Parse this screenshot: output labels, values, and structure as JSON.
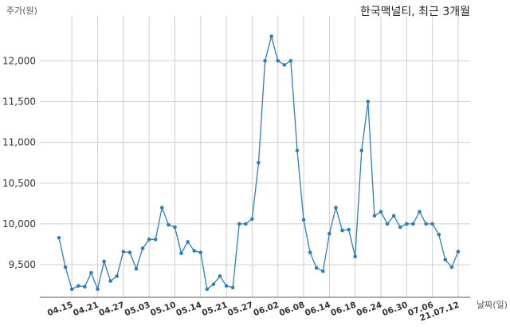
{
  "chart_data": {
    "type": "line",
    "title": "한국맥널티, 최근 3개월",
    "ylabel": "주가(원)",
    "xlabel": "날짜(일)",
    "ylim": [
      9100,
      12550
    ],
    "grid": true,
    "line_color": "#2e7fb5",
    "grid_color": "#cfcfcf",
    "x_tick_labels": [
      "04.15",
      "04.21",
      "04.27",
      "05.03",
      "05.10",
      "05.14",
      "05.21",
      "05.27",
      "06.02",
      "06.08",
      "06.14",
      "06.18",
      "06.24",
      "06.30",
      "07.06",
      "21.07.12"
    ],
    "x_tick_indices": [
      2,
      6,
      10,
      14,
      18,
      22,
      26,
      30,
      34,
      38,
      42,
      46,
      50,
      54,
      58,
      62
    ],
    "y_ticks": [
      9500,
      10000,
      10500,
      11000,
      11500,
      12000
    ],
    "y_tick_labels": [
      "9,500",
      "10,000",
      "10,500",
      "11,000",
      "11,500",
      "12,000"
    ],
    "values": [
      9830,
      9470,
      9200,
      9240,
      9230,
      9400,
      9200,
      9540,
      9300,
      9360,
      9660,
      9650,
      9450,
      9700,
      9810,
      9810,
      10200,
      9990,
      9960,
      9640,
      9780,
      9670,
      9650,
      9200,
      9260,
      9360,
      9240,
      9220,
      10000,
      10000,
      10060,
      10750,
      12000,
      12300,
      12000,
      11950,
      12000,
      10900,
      10050,
      9650,
      9460,
      9420,
      9880,
      10200,
      9920,
      9930,
      9600,
      10900,
      11500,
      10100,
      10150,
      10000,
      10100,
      9960,
      10000,
      10000,
      10150,
      10000,
      10000,
      9870,
      9560,
      9470,
      9660
    ]
  }
}
